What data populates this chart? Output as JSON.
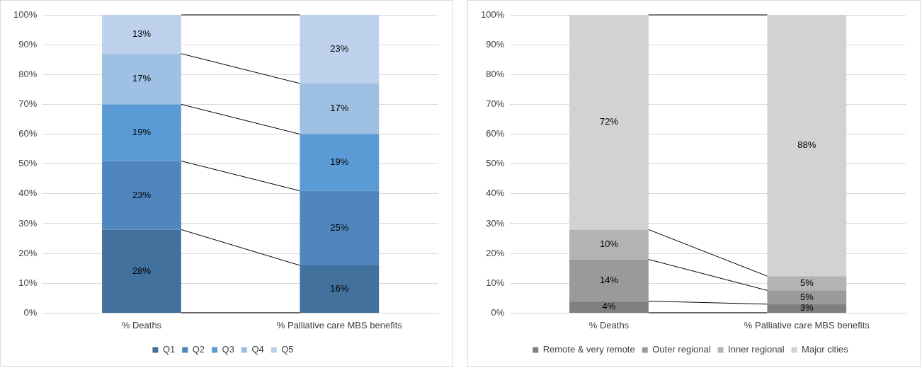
{
  "chart_data": [
    {
      "type": "bar",
      "stacked": true,
      "categories": [
        "% Deaths",
        "% Palliative care MBS benefits"
      ],
      "ylim": [
        0,
        100
      ],
      "yticks": [
        {
          "value": 0,
          "label": "0%"
        },
        {
          "value": 10,
          "label": "10%"
        },
        {
          "value": 20,
          "label": "20%"
        },
        {
          "value": 30,
          "label": "30%"
        },
        {
          "value": 40,
          "label": "40%"
        },
        {
          "value": 50,
          "label": "50%"
        },
        {
          "value": 60,
          "label": "60%"
        },
        {
          "value": 70,
          "label": "70%"
        },
        {
          "value": 80,
          "label": "80%"
        },
        {
          "value": 90,
          "label": "90%"
        },
        {
          "value": 100,
          "label": "100%"
        }
      ],
      "grid": "y",
      "legend": "bottom",
      "series": [
        {
          "name": "Q1",
          "color": "#41719c",
          "values": [
            28,
            16
          ],
          "value_labels": [
            "28%",
            "16%"
          ]
        },
        {
          "name": "Q2",
          "color": "#4e86bd",
          "values": [
            23,
            25
          ],
          "value_labels": [
            "23%",
            "25%"
          ]
        },
        {
          "name": "Q3",
          "color": "#5b9bd5",
          "values": [
            19,
            19
          ],
          "value_labels": [
            "19%",
            "19%"
          ]
        },
        {
          "name": "Q4",
          "color": "#9dc0e3",
          "values": [
            17,
            17
          ],
          "value_labels": [
            "17%",
            "17%"
          ]
        },
        {
          "name": "Q5",
          "color": "#bdd1ec",
          "values": [
            13,
            23
          ],
          "value_labels": [
            "13%",
            "23%"
          ]
        }
      ]
    },
    {
      "type": "bar",
      "stacked": true,
      "categories": [
        "% Deaths",
        "% Palliative care MBS benefits"
      ],
      "ylim": [
        0,
        100
      ],
      "yticks": [
        {
          "value": 0,
          "label": "0%"
        },
        {
          "value": 10,
          "label": "10%"
        },
        {
          "value": 20,
          "label": "20%"
        },
        {
          "value": 30,
          "label": "30%"
        },
        {
          "value": 40,
          "label": "40%"
        },
        {
          "value": 50,
          "label": "50%"
        },
        {
          "value": 60,
          "label": "60%"
        },
        {
          "value": 70,
          "label": "70%"
        },
        {
          "value": 80,
          "label": "80%"
        },
        {
          "value": 90,
          "label": "90%"
        },
        {
          "value": 100,
          "label": "100%"
        }
      ],
      "grid": "y",
      "legend": "bottom",
      "series": [
        {
          "name": "Remote & very remote",
          "color": "#808080",
          "values": [
            4,
            3
          ],
          "value_labels": [
            "4%",
            "3%"
          ]
        },
        {
          "name": "Outer regional",
          "color": "#9a9a9a",
          "values": [
            14,
            4.6
          ],
          "value_labels": [
            "14%",
            "5%"
          ]
        },
        {
          "name": "Inner regional",
          "color": "#b3b3b3",
          "values": [
            10,
            4.8
          ],
          "value_labels": [
            "10%",
            "5%"
          ]
        },
        {
          "name": "Major cities",
          "color": "#d2d2d2",
          "values": [
            72,
            87.6
          ],
          "value_labels": [
            "72%",
            "88%"
          ]
        }
      ]
    }
  ]
}
